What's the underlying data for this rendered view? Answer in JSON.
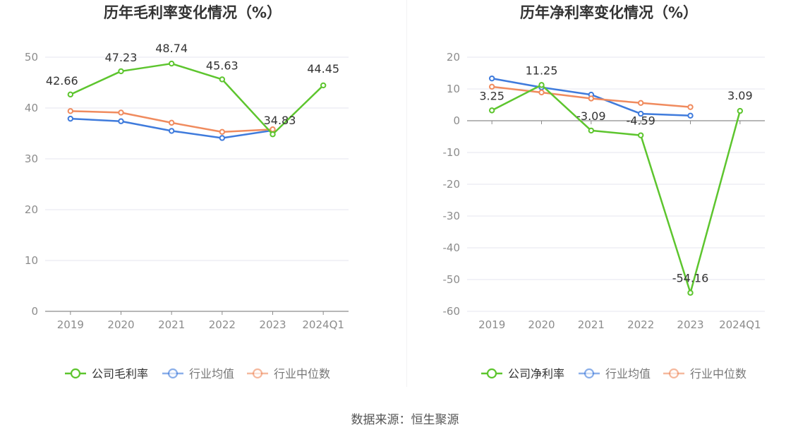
{
  "footer": {
    "source": "数据来源：恒生聚源"
  },
  "colors": {
    "company": "#5dc52e",
    "avg": "#3f7bdc",
    "median": "#f08b5e",
    "grid": "#e6e6ef",
    "axis": "#8c8c8c",
    "tick_text": "#8c8c8c",
    "label_text": "#333333",
    "title_text": "#333333"
  },
  "chart_data": [
    {
      "type": "line",
      "title": "历年毛利率变化情况（%）",
      "categories": [
        "2019",
        "2020",
        "2021",
        "2022",
        "2023",
        "2024Q1"
      ],
      "ylim": [
        0,
        50
      ],
      "yticks": [
        0,
        10,
        20,
        30,
        40,
        50
      ],
      "grid": true,
      "legend_position": "bottom",
      "series": [
        {
          "name": "公司毛利率",
          "color": "#5dc52e",
          "values": [
            42.66,
            47.23,
            48.74,
            45.63,
            34.83,
            44.45
          ],
          "labels": [
            "42.66",
            "47.23",
            "48.74",
            "45.63",
            "34.83",
            "44.45"
          ]
        },
        {
          "name": "行业均值",
          "color": "#3f7bdc",
          "values": [
            37.9,
            37.4,
            35.5,
            34.1,
            35.6,
            null
          ]
        },
        {
          "name": "行业中位数",
          "color": "#f08b5e",
          "values": [
            39.4,
            39.1,
            37.1,
            35.3,
            35.8,
            null
          ]
        }
      ]
    },
    {
      "type": "line",
      "title": "历年净利率变化情况（%）",
      "categories": [
        "2019",
        "2020",
        "2021",
        "2022",
        "2023",
        "2024Q1"
      ],
      "ylim": [
        -60,
        20
      ],
      "yticks": [
        -60,
        -50,
        -40,
        -30,
        -20,
        -10,
        0,
        10,
        20
      ],
      "grid": true,
      "legend_position": "bottom",
      "series": [
        {
          "name": "公司净利率",
          "color": "#5dc52e",
          "values": [
            3.25,
            11.25,
            -3.09,
            -4.59,
            -54.16,
            3.09
          ],
          "labels": [
            "3.25",
            "11.25",
            "-3.09",
            "-4.59",
            "-54.16",
            "3.09"
          ]
        },
        {
          "name": "行业均值",
          "color": "#3f7bdc",
          "values": [
            13.3,
            10.5,
            8.2,
            2.2,
            1.6,
            null
          ]
        },
        {
          "name": "行业中位数",
          "color": "#f08b5e",
          "values": [
            10.7,
            8.9,
            7.0,
            5.6,
            4.3,
            null
          ]
        }
      ]
    }
  ]
}
